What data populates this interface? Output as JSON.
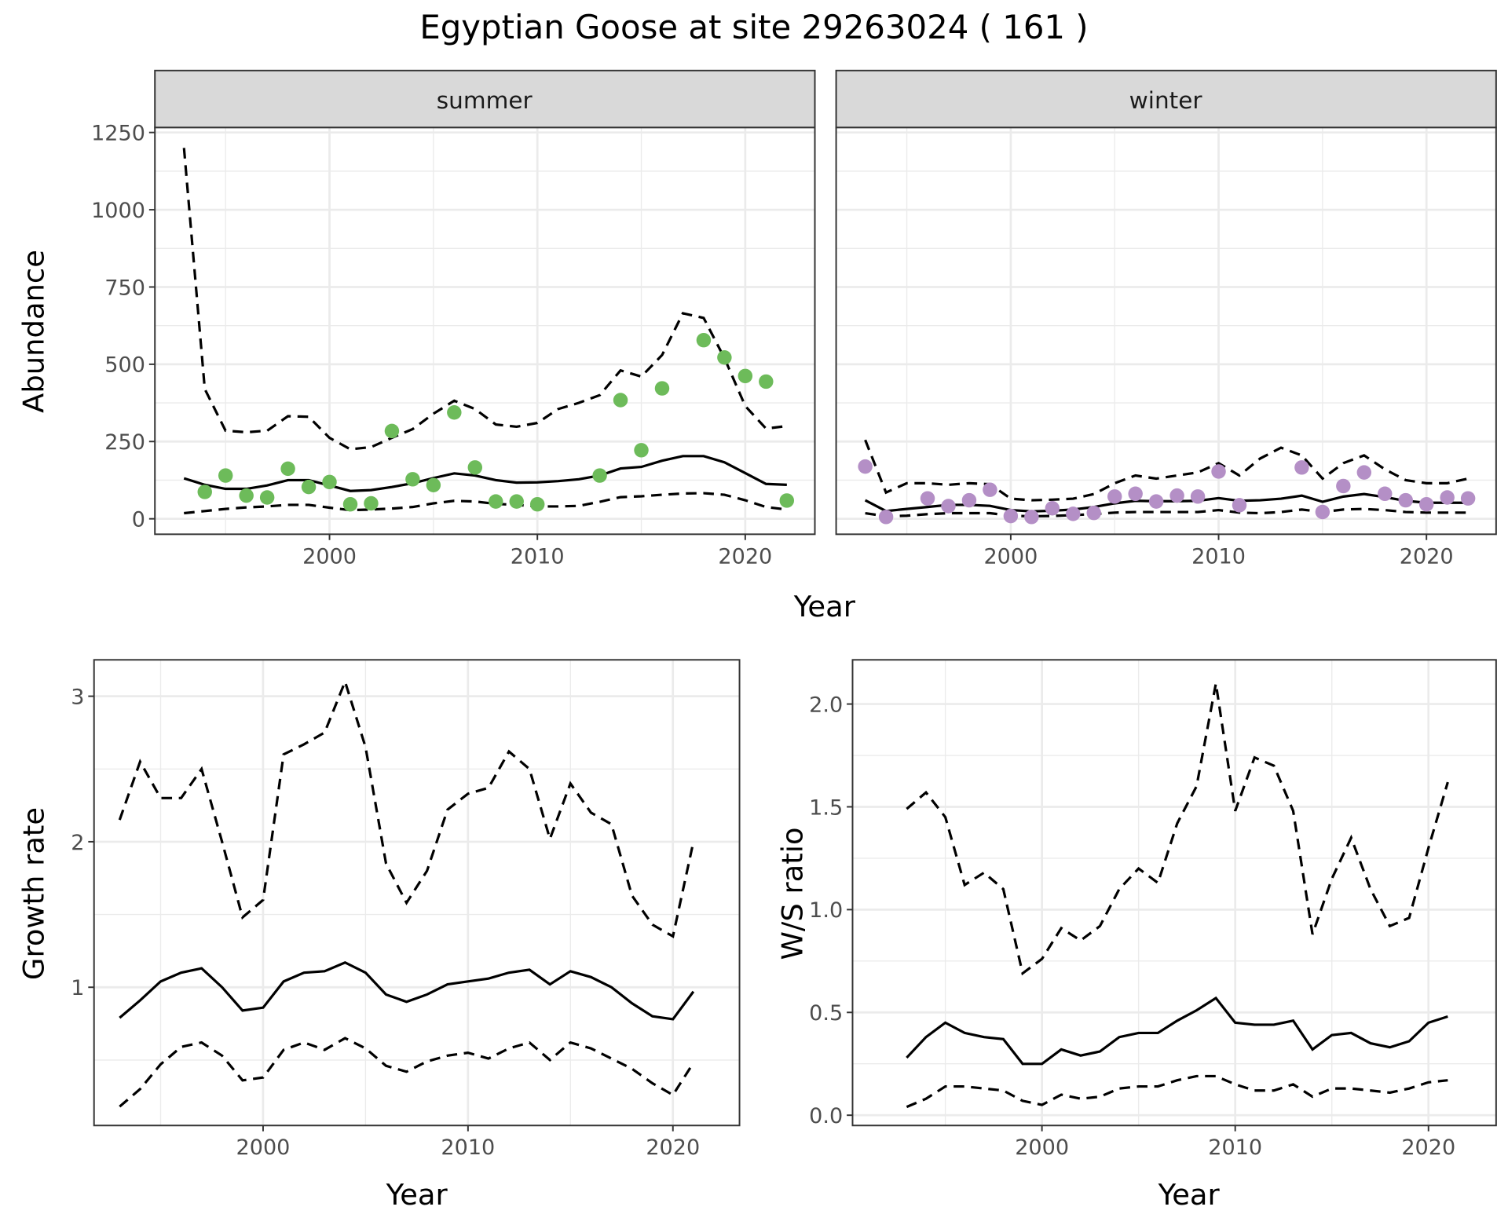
{
  "title": "Egyptian Goose at site 29263024 ( 161 )",
  "colors": {
    "summer": "#6dbb5a",
    "winter": "#b48fc6",
    "line": "#000000",
    "strip": "#d9d9d9"
  },
  "chart_data": [
    {
      "type": "line+scatter",
      "facet": "summer",
      "xlabel": "Year",
      "ylabel": "Abundance",
      "xlim": [
        1991.6,
        2023.35
      ],
      "ylim": [
        -50,
        1266
      ],
      "xticks": [
        2000,
        2010,
        2020
      ],
      "yticks": [
        0,
        250,
        500,
        750,
        1000,
        1250
      ],
      "grid": true,
      "points": {
        "x": [
          1994,
          1995,
          1996,
          1997,
          1998,
          1999,
          2000,
          2001,
          2002,
          2003,
          2004,
          2005,
          2006,
          2007,
          2008,
          2009,
          2010,
          2013,
          2014,
          2015,
          2016,
          2018,
          2019,
          2020,
          2021,
          2022
        ],
        "y": [
          87,
          140,
          75,
          69,
          162,
          103,
          119,
          47,
          50,
          284,
          128,
          109,
          344,
          166,
          56,
          56,
          47,
          140,
          384,
          222,
          422,
          578,
          522,
          462,
          444,
          59
        ]
      },
      "years": [
        1993,
        1994,
        1995,
        1996,
        1997,
        1998,
        1999,
        2000,
        2001,
        2002,
        2003,
        2004,
        2005,
        2006,
        2007,
        2008,
        2009,
        2010,
        2011,
        2012,
        2013,
        2014,
        2015,
        2016,
        2017,
        2018,
        2019,
        2020,
        2021,
        2022
      ],
      "mean": [
        131,
        110,
        97,
        97,
        108,
        125,
        125,
        108,
        90,
        93,
        103,
        115,
        132,
        147,
        140,
        125,
        117,
        118,
        122,
        128,
        140,
        163,
        168,
        188,
        203,
        203,
        183,
        148,
        113,
        110
      ],
      "upper": [
        1200,
        420,
        285,
        280,
        285,
        332,
        330,
        262,
        225,
        232,
        262,
        290,
        340,
        382,
        355,
        305,
        298,
        310,
        355,
        375,
        400,
        480,
        460,
        530,
        665,
        650,
        520,
        365,
        292,
        300
      ],
      "lower": [
        18,
        25,
        32,
        37,
        40,
        45,
        45,
        36,
        28,
        30,
        33,
        38,
        50,
        58,
        56,
        48,
        45,
        40,
        40,
        42,
        55,
        70,
        73,
        78,
        82,
        83,
        78,
        60,
        38,
        30
      ]
    },
    {
      "type": "line+scatter",
      "facet": "winter",
      "xlabel": "Year",
      "ylabel": "Abundance",
      "xlim": [
        1991.6,
        2023.35
      ],
      "ylim": [
        -50,
        1266
      ],
      "xticks": [
        2000,
        2010,
        2020
      ],
      "yticks": [
        0,
        250,
        500,
        750,
        1000,
        1250
      ],
      "grid": true,
      "points": {
        "x": [
          1993,
          1994,
          1996,
          1997,
          1998,
          1999,
          2000,
          2001,
          2002,
          2003,
          2004,
          2005,
          2006,
          2007,
          2008,
          2009,
          2010,
          2011,
          2014,
          2015,
          2016,
          2017,
          2018,
          2019,
          2020,
          2021,
          2022
        ],
        "y": [
          169,
          6,
          66,
          41,
          60,
          94,
          9,
          6,
          34,
          16,
          19,
          72,
          81,
          56,
          75,
          72,
          153,
          44,
          166,
          22,
          106,
          150,
          81,
          60,
          47,
          69,
          66
        ]
      },
      "years": [
        1993,
        1994,
        1995,
        1996,
        1997,
        1998,
        1999,
        2000,
        2001,
        2002,
        2003,
        2004,
        2005,
        2006,
        2007,
        2008,
        2009,
        2010,
        2011,
        2012,
        2013,
        2014,
        2015,
        2016,
        2017,
        2018,
        2019,
        2020,
        2021,
        2022
      ],
      "mean": [
        60,
        25,
        32,
        38,
        45,
        45,
        42,
        28,
        24,
        26,
        30,
        38,
        50,
        58,
        57,
        57,
        58,
        67,
        58,
        60,
        65,
        75,
        55,
        72,
        80,
        70,
        58,
        52,
        52,
        52
      ],
      "upper": [
        255,
        85,
        115,
        115,
        110,
        115,
        112,
        65,
        60,
        62,
        65,
        80,
        115,
        140,
        130,
        140,
        150,
        180,
        140,
        195,
        230,
        205,
        130,
        180,
        205,
        160,
        125,
        115,
        115,
        130
      ],
      "lower": [
        18,
        8,
        10,
        15,
        18,
        18,
        18,
        10,
        8,
        9,
        12,
        15,
        20,
        22,
        22,
        22,
        22,
        28,
        20,
        18,
        22,
        30,
        22,
        30,
        32,
        28,
        22,
        20,
        20,
        20
      ]
    },
    {
      "type": "line",
      "xlabel": "Year",
      "ylabel": "Growth rate",
      "xlim": [
        1991.75,
        2023.25
      ],
      "ylim": [
        0.05,
        3.25
      ],
      "xticks": [
        2000,
        2010,
        2020
      ],
      "yticks": [
        1,
        2,
        3
      ],
      "grid": true,
      "years": [
        1993,
        1994,
        1995,
        1996,
        1997,
        1998,
        1999,
        2000,
        2001,
        2002,
        2003,
        2004,
        2005,
        2006,
        2007,
        2008,
        2009,
        2010,
        2011,
        2012,
        2013,
        2014,
        2015,
        2016,
        2017,
        2018,
        2019,
        2020,
        2021
      ],
      "mean": [
        0.79,
        0.91,
        1.04,
        1.1,
        1.13,
        1.0,
        0.84,
        0.86,
        1.04,
        1.1,
        1.11,
        1.17,
        1.1,
        0.95,
        0.9,
        0.95,
        1.02,
        1.04,
        1.06,
        1.1,
        1.12,
        1.02,
        1.11,
        1.07,
        1.0,
        0.89,
        0.8,
        0.78,
        0.97
      ],
      "upper": [
        2.15,
        2.55,
        2.3,
        2.3,
        2.5,
        2.0,
        1.48,
        1.6,
        2.6,
        2.67,
        2.75,
        3.1,
        2.65,
        1.85,
        1.58,
        1.8,
        2.22,
        2.33,
        2.37,
        2.62,
        2.5,
        2.02,
        2.4,
        2.2,
        2.12,
        1.63,
        1.43,
        1.35,
        2.0
      ],
      "lower": [
        0.18,
        0.3,
        0.47,
        0.59,
        0.62,
        0.53,
        0.36,
        0.38,
        0.57,
        0.62,
        0.57,
        0.65,
        0.58,
        0.46,
        0.42,
        0.49,
        0.53,
        0.55,
        0.51,
        0.58,
        0.62,
        0.5,
        0.62,
        0.58,
        0.51,
        0.44,
        0.34,
        0.26,
        0.48
      ]
    },
    {
      "type": "line",
      "xlabel": "Year",
      "ylabel": "W/S ratio",
      "xlim": [
        1990.2,
        2023.5
      ],
      "ylim": [
        -0.05,
        2.215
      ],
      "xticks": [
        2000,
        2010,
        2020
      ],
      "yticks": [
        0.0,
        0.5,
        1.0,
        1.5,
        2.0
      ],
      "ytick_labels": [
        "0.0",
        "0.5",
        "1.0",
        "1.5",
        "2.0"
      ],
      "grid": true,
      "years": [
        1993,
        1994,
        1995,
        1996,
        1997,
        1998,
        1999,
        2000,
        2001,
        2002,
        2003,
        2004,
        2005,
        2006,
        2007,
        2008,
        2009,
        2010,
        2011,
        2012,
        2013,
        2014,
        2015,
        2016,
        2017,
        2018,
        2019,
        2020,
        2021
      ],
      "mean": [
        0.28,
        0.38,
        0.45,
        0.4,
        0.38,
        0.37,
        0.25,
        0.25,
        0.32,
        0.29,
        0.31,
        0.38,
        0.4,
        0.4,
        0.46,
        0.51,
        0.57,
        0.45,
        0.44,
        0.44,
        0.46,
        0.32,
        0.39,
        0.4,
        0.35,
        0.33,
        0.36,
        0.45,
        0.48
      ],
      "upper": [
        1.49,
        1.57,
        1.45,
        1.12,
        1.18,
        1.1,
        0.69,
        0.76,
        0.91,
        0.85,
        0.92,
        1.1,
        1.2,
        1.13,
        1.42,
        1.6,
        2.1,
        1.48,
        1.74,
        1.7,
        1.48,
        0.88,
        1.15,
        1.35,
        1.1,
        0.92,
        0.96,
        1.3,
        1.62
      ],
      "lower": [
        0.04,
        0.08,
        0.14,
        0.14,
        0.13,
        0.12,
        0.07,
        0.05,
        0.1,
        0.08,
        0.09,
        0.13,
        0.14,
        0.14,
        0.17,
        0.19,
        0.19,
        0.15,
        0.12,
        0.12,
        0.15,
        0.09,
        0.13,
        0.13,
        0.12,
        0.11,
        0.13,
        0.16,
        0.17
      ]
    }
  ]
}
